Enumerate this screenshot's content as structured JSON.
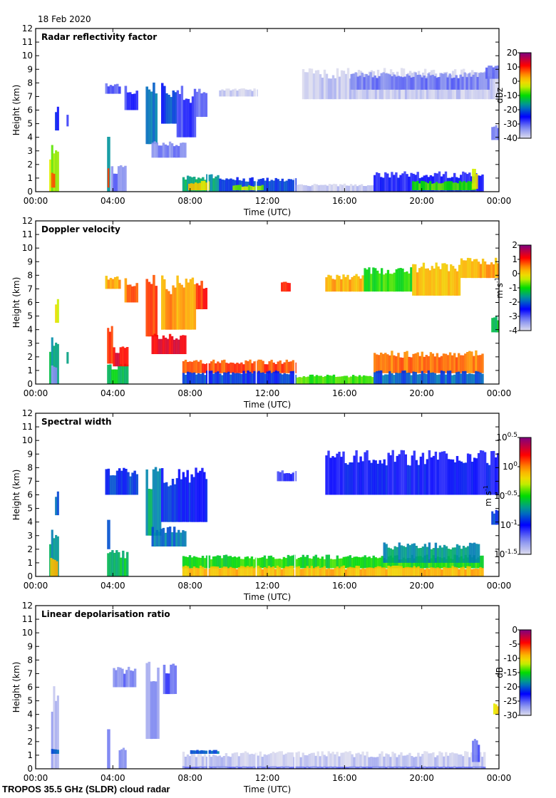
{
  "header": {
    "date": "18 Feb 2020"
  },
  "footer": {
    "instrument": "TROPOS 35.5 GHz (SLDR) cloud radar"
  },
  "chart_data": [
    {
      "type": "heatmap",
      "title": "Radar reflectivity factor",
      "xlabel": "Time (UTC)",
      "ylabel": "Height (km)",
      "xlim": [
        0,
        24
      ],
      "ylim": [
        0,
        12
      ],
      "x_ticks": [
        0,
        4,
        8,
        12,
        16,
        20,
        24
      ],
      "x_tick_labels": [
        "00:00",
        "04:00",
        "08:00",
        "12:00",
        "16:00",
        "20:00",
        "00:00"
      ],
      "y_ticks": [
        0,
        1,
        2,
        3,
        4,
        5,
        6,
        7,
        8,
        9,
        10,
        11,
        12
      ],
      "y_tick_labels": [
        "0",
        "1",
        "2",
        "3",
        "4",
        "5",
        "6",
        "7",
        "8",
        "9",
        "10",
        "11",
        "12"
      ],
      "colorbar": {
        "label": "dBz",
        "range": [
          -40,
          20
        ],
        "ticks": [
          20,
          10,
          0,
          -10,
          -20,
          -30,
          -40
        ],
        "tick_labels": [
          "20",
          "10",
          "0",
          "-10",
          "-20",
          "-30",
          "-40"
        ]
      },
      "features": [
        {
          "t0": 0.7,
          "t1": 1.2,
          "h0": 0,
          "h1": 3.5,
          "v": -5
        },
        {
          "t0": 0.8,
          "t1": 1.0,
          "h0": 0.3,
          "h1": 1.5,
          "v": 8
        },
        {
          "t0": 1.0,
          "t1": 1.2,
          "h0": 4.5,
          "h1": 6.5,
          "v": -25
        },
        {
          "t0": 1.6,
          "t1": 1.7,
          "h0": 4.8,
          "h1": 5.8,
          "v": -28
        },
        {
          "t0": 3.7,
          "t1": 3.85,
          "h0": 0,
          "h1": 4.3,
          "v": -15
        },
        {
          "t0": 3.72,
          "t1": 3.8,
          "h0": 0.3,
          "h1": 1.8,
          "v": 10
        },
        {
          "t0": 3.9,
          "t1": 4.7,
          "h0": 0,
          "h1": 2.0,
          "v": -32
        },
        {
          "t0": 3.6,
          "t1": 4.4,
          "h0": 7.2,
          "h1": 8.0,
          "v": -30
        },
        {
          "t0": 4.6,
          "t1": 5.3,
          "h0": 6.0,
          "h1": 7.8,
          "v": -28
        },
        {
          "t0": 5.7,
          "t1": 6.3,
          "h0": 3.5,
          "h1": 8.2,
          "v": -18
        },
        {
          "t0": 6.0,
          "t1": 7.8,
          "h0": 2.5,
          "h1": 3.7,
          "v": -32
        },
        {
          "t0": 6.5,
          "t1": 7.3,
          "h0": 5.0,
          "h1": 8.0,
          "v": -22
        },
        {
          "t0": 7.3,
          "t1": 8.3,
          "h0": 4.0,
          "h1": 7.8,
          "v": -28
        },
        {
          "t0": 8.3,
          "t1": 8.9,
          "h0": 5.5,
          "h1": 7.6,
          "v": -30
        },
        {
          "t0": 7.6,
          "t1": 9.5,
          "h0": 0,
          "h1": 1.3,
          "v": -15
        },
        {
          "t0": 7.9,
          "t1": 9.0,
          "h0": 0.1,
          "h1": 0.8,
          "v": 0
        },
        {
          "t0": 9.5,
          "t1": 13.5,
          "h0": 0,
          "h1": 1.1,
          "v": -22
        },
        {
          "t0": 10.2,
          "t1": 11.8,
          "h0": 0.1,
          "h1": 0.5,
          "v": -5
        },
        {
          "t0": 13.5,
          "t1": 17.5,
          "h0": 0,
          "h1": 0.6,
          "v": -38
        },
        {
          "t0": 17.5,
          "t1": 23.2,
          "h0": 0,
          "h1": 1.5,
          "v": -26
        },
        {
          "t0": 19.5,
          "t1": 22.8,
          "h0": 0.1,
          "h1": 0.8,
          "v": -8
        },
        {
          "t0": 22.6,
          "t1": 22.9,
          "h0": 0.2,
          "h1": 1.8,
          "v": -2
        },
        {
          "t0": 13.8,
          "t1": 24,
          "h0": 6.8,
          "h1": 9.1,
          "v": -38
        },
        {
          "t0": 16.3,
          "t1": 23.5,
          "h0": 7.5,
          "h1": 8.8,
          "v": -32
        },
        {
          "t0": 23.3,
          "t1": 24,
          "h0": 8.3,
          "h1": 9.3,
          "v": -30
        },
        {
          "t0": 23.6,
          "t1": 24,
          "h0": 3.8,
          "h1": 5.0,
          "v": -32
        },
        {
          "t0": 9.5,
          "t1": 11.5,
          "h0": 7.0,
          "h1": 7.6,
          "v": -38
        }
      ]
    },
    {
      "type": "heatmap",
      "title": "Doppler velocity",
      "xlabel": "Time (UTC)",
      "ylabel": "Height (km)",
      "xlim": [
        0,
        24
      ],
      "ylim": [
        0,
        12
      ],
      "x_ticks": [
        0,
        4,
        8,
        12,
        16,
        20,
        24
      ],
      "x_tick_labels": [
        "00:00",
        "04:00",
        "08:00",
        "12:00",
        "16:00",
        "20:00",
        "00:00"
      ],
      "y_ticks": [
        0,
        1,
        2,
        3,
        4,
        5,
        6,
        7,
        8,
        9,
        10,
        11,
        12
      ],
      "y_tick_labels": [
        "0",
        "1",
        "2",
        "3",
        "4",
        "5",
        "6",
        "7",
        "8",
        "9",
        "10",
        "11",
        "12"
      ],
      "colorbar": {
        "label": "m s",
        "label_sup": "-1",
        "range": [
          -4,
          2
        ],
        "ticks": [
          2,
          1,
          0,
          -1,
          -2,
          -3,
          -4
        ],
        "tick_labels": [
          "2",
          "1",
          "0",
          "-1",
          "-2",
          "-3",
          "-4"
        ]
      },
      "features": [
        {
          "t0": 0.7,
          "t1": 1.2,
          "h0": 0,
          "h1": 3.5,
          "v": -1.5
        },
        {
          "t0": 0.8,
          "t1": 1.1,
          "h0": 0,
          "h1": 1.5,
          "v": -3.3
        },
        {
          "t0": 1.0,
          "t1": 1.2,
          "h0": 4.5,
          "h1": 6.5,
          "v": -0.3
        },
        {
          "t0": 1.6,
          "t1": 1.7,
          "h0": 1.5,
          "h1": 2.5,
          "v": -1.5
        },
        {
          "t0": 3.7,
          "t1": 4.0,
          "h0": 1.5,
          "h1": 4.3,
          "v": 1.0
        },
        {
          "t0": 3.7,
          "t1": 4.8,
          "h0": 0,
          "h1": 1.5,
          "v": -1.2
        },
        {
          "t0": 4.0,
          "t1": 4.8,
          "h0": 1.3,
          "h1": 2.8,
          "v": 1.2
        },
        {
          "t0": 3.6,
          "t1": 4.4,
          "h0": 7.0,
          "h1": 8.0,
          "v": 0.3
        },
        {
          "t0": 4.6,
          "t1": 5.3,
          "h0": 6.0,
          "h1": 7.8,
          "v": 0.6
        },
        {
          "t0": 5.7,
          "t1": 6.3,
          "h0": 3.5,
          "h1": 8.2,
          "v": 0.9
        },
        {
          "t0": 6.0,
          "t1": 7.8,
          "h0": 2.2,
          "h1": 3.7,
          "v": 1.3
        },
        {
          "t0": 6.5,
          "t1": 8.3,
          "h0": 4.0,
          "h1": 8.0,
          "v": 0.4
        },
        {
          "t0": 8.3,
          "t1": 8.9,
          "h0": 5.5,
          "h1": 7.6,
          "v": 1.0
        },
        {
          "t0": 7.6,
          "t1": 13.5,
          "h0": 0.8,
          "h1": 1.8,
          "v": 0.8
        },
        {
          "t0": 7.6,
          "t1": 13.5,
          "h0": 0,
          "h1": 1.0,
          "v": -2.2
        },
        {
          "t0": 13.5,
          "t1": 17.5,
          "h0": 0,
          "h1": 0.7,
          "v": -0.8
        },
        {
          "t0": 17.5,
          "t1": 23.2,
          "h0": 0.8,
          "h1": 2.5,
          "v": 0.6
        },
        {
          "t0": 17.5,
          "t1": 23.2,
          "h0": 0,
          "h1": 1.0,
          "v": -2.0
        },
        {
          "t0": 12.7,
          "t1": 13.2,
          "h0": 6.8,
          "h1": 7.6,
          "v": 1.0
        },
        {
          "t0": 15.0,
          "t1": 17.0,
          "h0": 6.8,
          "h1": 8.1,
          "v": 0.3
        },
        {
          "t0": 17.0,
          "t1": 19.5,
          "h0": 6.8,
          "h1": 8.6,
          "v": -0.9
        },
        {
          "t0": 19.5,
          "t1": 22.0,
          "h0": 6.5,
          "h1": 9.0,
          "v": 0.2
        },
        {
          "t0": 22.0,
          "t1": 24,
          "h0": 7.8,
          "h1": 9.3,
          "v": 0.3
        },
        {
          "t0": 23.6,
          "t1": 24,
          "h0": 3.8,
          "h1": 5.0,
          "v": -1.2
        }
      ]
    },
    {
      "type": "heatmap",
      "title": "Spectral width",
      "xlabel": "Time (UTC)",
      "ylabel": "Height (km)",
      "xlim": [
        0,
        24
      ],
      "ylim": [
        0,
        12
      ],
      "x_ticks": [
        0,
        4,
        8,
        12,
        16,
        20,
        24
      ],
      "x_tick_labels": [
        "00:00",
        "04:00",
        "08:00",
        "12:00",
        "16:00",
        "20:00",
        "00:00"
      ],
      "y_ticks": [
        0,
        1,
        2,
        3,
        4,
        5,
        6,
        7,
        8,
        9,
        10,
        11,
        12
      ],
      "y_tick_labels": [
        "0",
        "1",
        "2",
        "3",
        "4",
        "5",
        "6",
        "7",
        "8",
        "9",
        "10",
        "11",
        "12"
      ],
      "colorbar": {
        "label": "m s",
        "label_sup": "-1",
        "scale": "log10",
        "range": [
          -1.5,
          0.5
        ],
        "ticks": [
          0.5,
          0,
          -0.5,
          -1,
          -1.5
        ],
        "tick_base": "10",
        "tick_exponents": [
          "0.5",
          "0",
          "-0.5",
          "-1",
          "-1.5"
        ]
      },
      "features": [
        {
          "t0": 0.7,
          "t1": 1.2,
          "h0": 0,
          "h1": 3.5,
          "v": -0.7
        },
        {
          "t0": 0.75,
          "t1": 1.15,
          "h0": 0,
          "h1": 1.5,
          "v": -0.1
        },
        {
          "t0": 1.0,
          "t1": 1.2,
          "h0": 4.5,
          "h1": 6.5,
          "v": -0.85
        },
        {
          "t0": 3.7,
          "t1": 4.8,
          "h0": 0,
          "h1": 2.0,
          "v": -0.6
        },
        {
          "t0": 3.7,
          "t1": 3.85,
          "h0": 2.0,
          "h1": 4.3,
          "v": -0.8
        },
        {
          "t0": 3.6,
          "t1": 5.3,
          "h0": 6.0,
          "h1": 8.0,
          "v": -0.9
        },
        {
          "t0": 5.7,
          "t1": 6.5,
          "h0": 3.0,
          "h1": 8.2,
          "v": -0.7
        },
        {
          "t0": 6.0,
          "t1": 7.8,
          "h0": 2.2,
          "h1": 3.7,
          "v": -0.8
        },
        {
          "t0": 6.5,
          "t1": 8.9,
          "h0": 4.0,
          "h1": 8.0,
          "v": -0.95
        },
        {
          "t0": 7.6,
          "t1": 23.2,
          "h0": 0.6,
          "h1": 1.6,
          "v": -0.5
        },
        {
          "t0": 7.6,
          "t1": 23.2,
          "h0": 0,
          "h1": 0.8,
          "v": -0.1
        },
        {
          "t0": 18.0,
          "t1": 23.0,
          "h0": 1.0,
          "h1": 2.5,
          "v": -0.7
        },
        {
          "t0": 12.5,
          "t1": 13.5,
          "h0": 7.0,
          "h1": 7.8,
          "v": -1.1
        },
        {
          "t0": 15.0,
          "t1": 24,
          "h0": 6.0,
          "h1": 9.3,
          "v": -1.0
        },
        {
          "t0": 23.6,
          "t1": 24,
          "h0": 3.8,
          "h1": 5.0,
          "v": -0.9
        }
      ]
    },
    {
      "type": "heatmap",
      "title": "Linear depolarisation ratio",
      "xlabel": "Time (UTC)",
      "ylabel": "Height (km)",
      "xlim": [
        0,
        24
      ],
      "ylim": [
        0,
        12
      ],
      "x_ticks": [
        0,
        4,
        8,
        12,
        16,
        20,
        24
      ],
      "x_tick_labels": [
        "00:00",
        "04:00",
        "08:00",
        "12:00",
        "16:00",
        "20:00",
        "00:00"
      ],
      "y_ticks": [
        0,
        1,
        2,
        3,
        4,
        5,
        6,
        7,
        8,
        9,
        10,
        11,
        12
      ],
      "y_tick_labels": [
        "0",
        "1",
        "2",
        "3",
        "4",
        "5",
        "6",
        "7",
        "8",
        "9",
        "10",
        "11",
        "12"
      ],
      "colorbar": {
        "label": "dB",
        "range": [
          -30,
          0
        ],
        "ticks": [
          0,
          -5,
          -10,
          -15,
          -20,
          -25,
          -30
        ],
        "tick_labels": [
          "0",
          "-5",
          "-10",
          "-15",
          "-20",
          "-25",
          "-30"
        ]
      },
      "features": [
        {
          "t0": 0.8,
          "t1": 1.2,
          "h0": 0,
          "h1": 6.2,
          "v": -28
        },
        {
          "t0": 0.8,
          "t1": 1.2,
          "h0": 1.1,
          "h1": 1.5,
          "v": -20
        },
        {
          "t0": 3.7,
          "t1": 3.85,
          "h0": 0,
          "h1": 4.3,
          "v": -27
        },
        {
          "t0": 4.3,
          "t1": 4.7,
          "h0": 0,
          "h1": 1.6,
          "v": -26
        },
        {
          "t0": 4.0,
          "t1": 5.2,
          "h0": 6.0,
          "h1": 7.5,
          "v": -26
        },
        {
          "t0": 5.7,
          "t1": 6.4,
          "h0": 2.2,
          "h1": 8.1,
          "v": -27
        },
        {
          "t0": 6.6,
          "t1": 7.3,
          "h0": 5.5,
          "h1": 7.8,
          "v": -25
        },
        {
          "t0": 7.6,
          "t1": 23.3,
          "h0": 0,
          "h1": 1.3,
          "v": -29
        },
        {
          "t0": 7.6,
          "t1": 23.3,
          "h0": 0,
          "h1": 0.2,
          "v": -26
        },
        {
          "t0": 8.0,
          "t1": 9.5,
          "h0": 1.1,
          "h1": 1.4,
          "v": -20
        },
        {
          "t0": 22.6,
          "t1": 23.0,
          "h0": 0.5,
          "h1": 2.2,
          "v": -25
        },
        {
          "t0": 23.7,
          "t1": 24,
          "h0": 4.0,
          "h1": 4.8,
          "v": -10
        }
      ]
    }
  ]
}
